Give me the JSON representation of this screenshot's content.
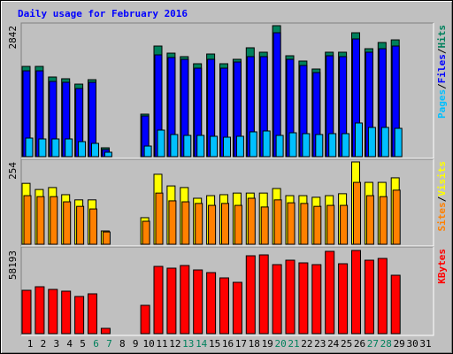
{
  "chart_data": [
    {
      "type": "bar",
      "title": "Daily usage for February 2016",
      "title_color": "#0000ff",
      "ylim": [
        0,
        2842
      ],
      "yticks": [
        2842
      ],
      "legend_separator": "/",
      "series": [
        {
          "name": "Hits",
          "color": "#00805c",
          "values": [
            1958,
            1958,
            1728,
            1690,
            1574,
            1670,
            192,
            null,
            null,
            922,
            2400,
            2246,
            2170,
            2016,
            2227,
            2016,
            2112,
            2362,
            2266,
            2842,
            2189,
            2074,
            1901,
            2266,
            2266,
            2688,
            2342,
            2477,
            2534,
            null,
            null
          ]
        },
        {
          "name": "Files",
          "color": "#0000ff",
          "values": [
            1862,
            1862,
            1632,
            1613,
            1478,
            1613,
            154,
            null,
            null,
            883,
            2208,
            2150,
            2112,
            1920,
            2112,
            1920,
            2054,
            2170,
            2170,
            2688,
            2112,
            1978,
            1824,
            2189,
            2170,
            2554,
            2266,
            2342,
            2400,
            null,
            null
          ]
        },
        {
          "name": "Pages",
          "color": "#00c0ff",
          "values": [
            403,
            384,
            384,
            384,
            326,
            288,
            96,
            null,
            null,
            230,
            576,
            480,
            461,
            461,
            442,
            422,
            442,
            538,
            557,
            461,
            518,
            499,
            480,
            499,
            499,
            730,
            634,
            634,
            614,
            null,
            null
          ]
        }
      ]
    },
    {
      "type": "bar",
      "ylim": [
        0,
        254
      ],
      "yticks": [
        254
      ],
      "legend_separator": "/",
      "series": [
        {
          "name": "Visits",
          "color": "#ffff00",
          "values": [
            188,
            169,
            175,
            153,
            137,
            137,
            41,
            null,
            null,
            82,
            216,
            180,
            175,
            142,
            150,
            153,
            158,
            158,
            158,
            172,
            150,
            150,
            145,
            150,
            156,
            254,
            191,
            191,
            205,
            null,
            null
          ]
        },
        {
          "name": "Sites",
          "color": "#ff8000",
          "values": [
            150,
            147,
            147,
            131,
            117,
            109,
            38,
            null,
            null,
            71,
            158,
            134,
            131,
            126,
            120,
            126,
            120,
            142,
            115,
            137,
            128,
            126,
            117,
            120,
            120,
            191,
            150,
            147,
            167,
            null,
            null
          ]
        }
      ]
    },
    {
      "type": "bar",
      "ylim": [
        0,
        58193
      ],
      "yticks": [
        58193
      ],
      "categories": [
        "1",
        "2",
        "3",
        "4",
        "5",
        "6",
        "7",
        "8",
        "9",
        "10",
        "11",
        "12",
        "13",
        "14",
        "15",
        "16",
        "17",
        "18",
        "19",
        "20",
        "21",
        "22",
        "23",
        "24",
        "25",
        "26",
        "27",
        "28",
        "29",
        "30",
        "31"
      ],
      "category_colors": [
        "#000000",
        "#000000",
        "#000000",
        "#000000",
        "#000000",
        "#00805c",
        "#00805c",
        "#000000",
        "#000000",
        "#000000",
        "#000000",
        "#000000",
        "#00805c",
        "#00805c",
        "#000000",
        "#000000",
        "#000000",
        "#000000",
        "#000000",
        "#00805c",
        "#00805c",
        "#000000",
        "#000000",
        "#000000",
        "#000000",
        "#000000",
        "#00805c",
        "#00805c",
        "#000000",
        "#000000",
        "#000000"
      ],
      "series": [
        {
          "name": "KBytes",
          "color": "#ff0000",
          "values": [
            30331,
            32807,
            30950,
            29712,
            25998,
            27855,
            3714,
            null,
            null,
            19808,
            47044,
            45806,
            47663,
            44568,
            42711,
            38997,
            35902,
            54472,
            55091,
            48282,
            51377,
            49520,
            48282,
            57574,
            48901,
            58193,
            51377,
            52615,
            40854,
            null,
            null
          ]
        }
      ]
    }
  ]
}
